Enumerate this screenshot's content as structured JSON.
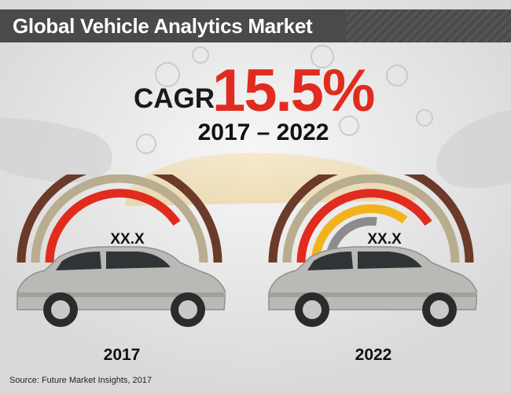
{
  "header": {
    "title": "Global Vehicle Analytics Market"
  },
  "cagr": {
    "label": "CAGR",
    "value": "15.5%",
    "period": "2017 – 2022"
  },
  "gauges": [
    {
      "year": "2017",
      "value_label": "XX.X",
      "arcs": [
        "#6b3a2a",
        "#b8ad8e",
        "#e12b1f"
      ]
    },
    {
      "year": "2022",
      "value_label": "XX.X",
      "arcs": [
        "#6b3a2a",
        "#b8ad8e",
        "#e12b1f",
        "#f2b21c",
        "#8c8c8c"
      ]
    }
  ],
  "source": "Source: Future Market Insights, 2017",
  "colors": {
    "title_bar": "#4a4a4a",
    "cagr_accent": "#e12b1f",
    "brown": "#6b3a2a",
    "khaki": "#b8ad8e",
    "red": "#e12b1f",
    "yellow": "#f2b21c",
    "grey": "#8c8c8c",
    "car_body": "#b9b9b6"
  }
}
